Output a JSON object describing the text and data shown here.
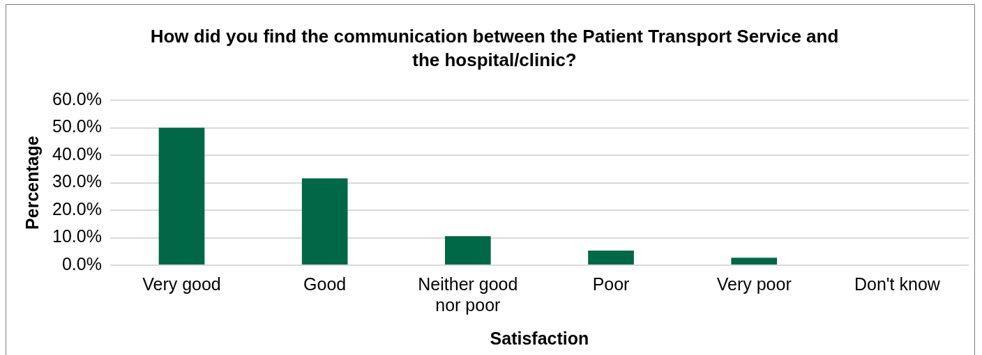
{
  "chart_data": {
    "type": "bar",
    "title": "How did you find the communication between the Patient Transport Service and the hospital/clinic?",
    "xlabel": "Satisfaction",
    "ylabel": "Percentage",
    "categories": [
      "Very good",
      "Good",
      "Neither good nor poor",
      "Poor",
      "Very poor",
      "Don't know"
    ],
    "values": [
      50.0,
      31.6,
      10.6,
      5.3,
      2.7,
      0
    ],
    "color": "#006747",
    "ylim": [
      0,
      60
    ],
    "yticks": [
      {
        "value": 0,
        "label": "0.0%"
      },
      {
        "value": 10,
        "label": "10.0%"
      },
      {
        "value": 20,
        "label": "20.0%"
      },
      {
        "value": 30,
        "label": "30.0%"
      },
      {
        "value": 40,
        "label": "40.0%"
      },
      {
        "value": 50,
        "label": "50.0%"
      },
      {
        "value": 60,
        "label": "60.0%"
      }
    ],
    "grid": "y",
    "legend": false
  }
}
